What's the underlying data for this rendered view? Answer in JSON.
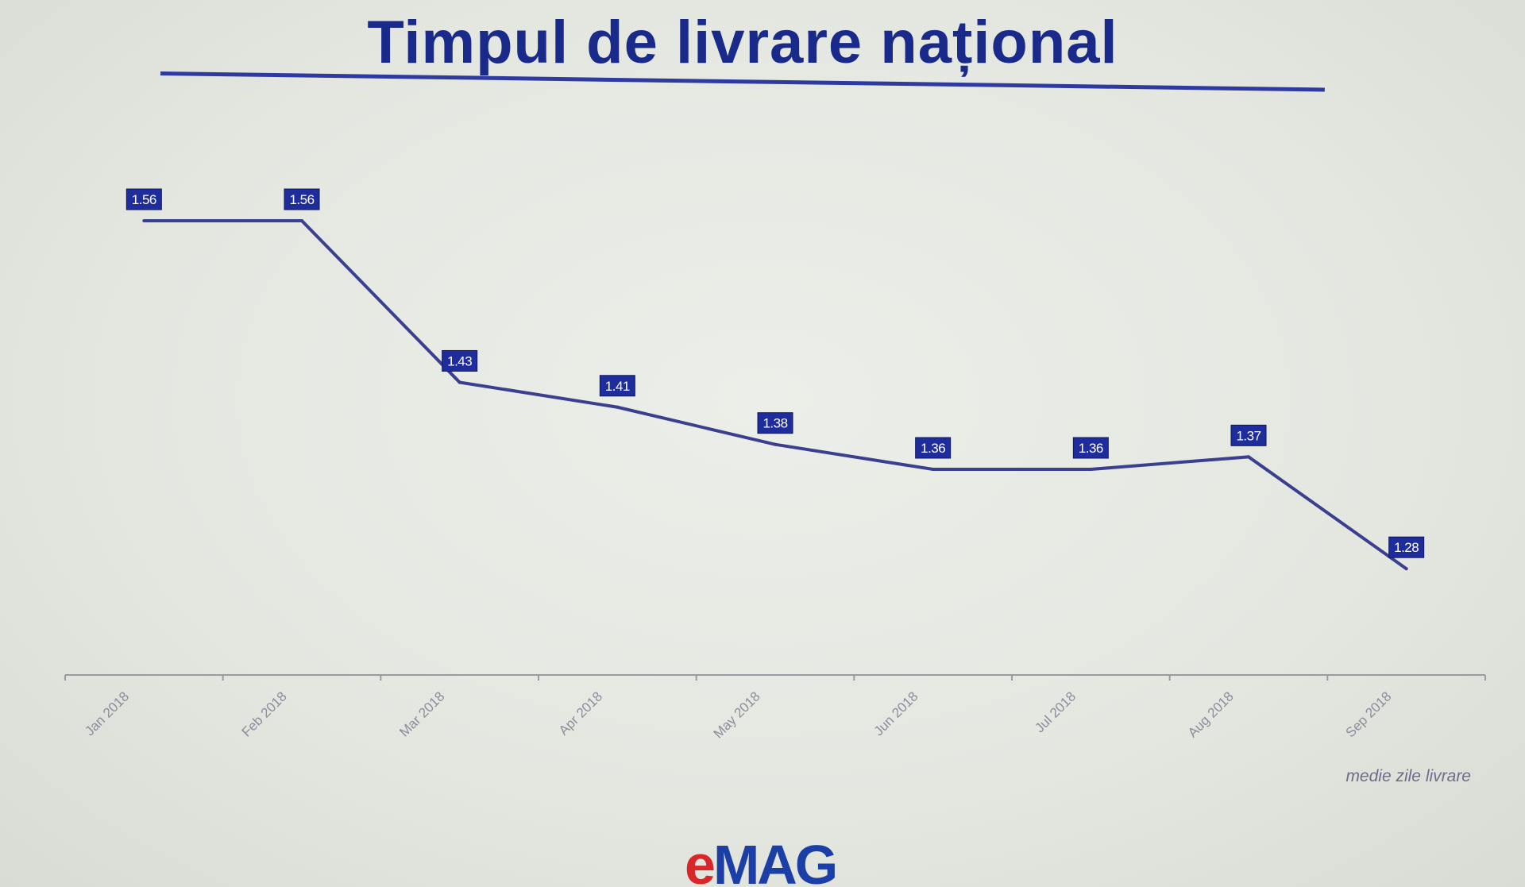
{
  "slide": {
    "title": "Timpul de livrare național",
    "note": "medie zile livrare",
    "logo": {
      "e": "e",
      "rest": "MAG"
    }
  },
  "colors": {
    "accent": "#2f3aa0",
    "line": "#3b3f8f",
    "label_bg": "#1f2d9c",
    "label_text": "#ffffff",
    "logo_e": "#d8262a",
    "logo_rest": "#1b3fa6"
  },
  "chart_data": {
    "type": "line",
    "categories": [
      "Jan 2018",
      "Feb 2018",
      "Mar 2018",
      "Apr 2018",
      "May 2018",
      "Jun 2018",
      "Jul 2018",
      "Aug 2018",
      "Sep 2018"
    ],
    "values": [
      1.56,
      1.56,
      1.43,
      1.41,
      1.38,
      1.36,
      1.36,
      1.37,
      1.28
    ],
    "data_labels": [
      "1.56",
      "1.56",
      "1.43",
      "1.41",
      "1.38",
      "1.36",
      "1.36",
      "1.37",
      "1.28"
    ],
    "title": "Timpul de livrare național",
    "xlabel": "",
    "ylabel": "",
    "y_axis_visible": false,
    "grid": false,
    "legend": "none"
  }
}
